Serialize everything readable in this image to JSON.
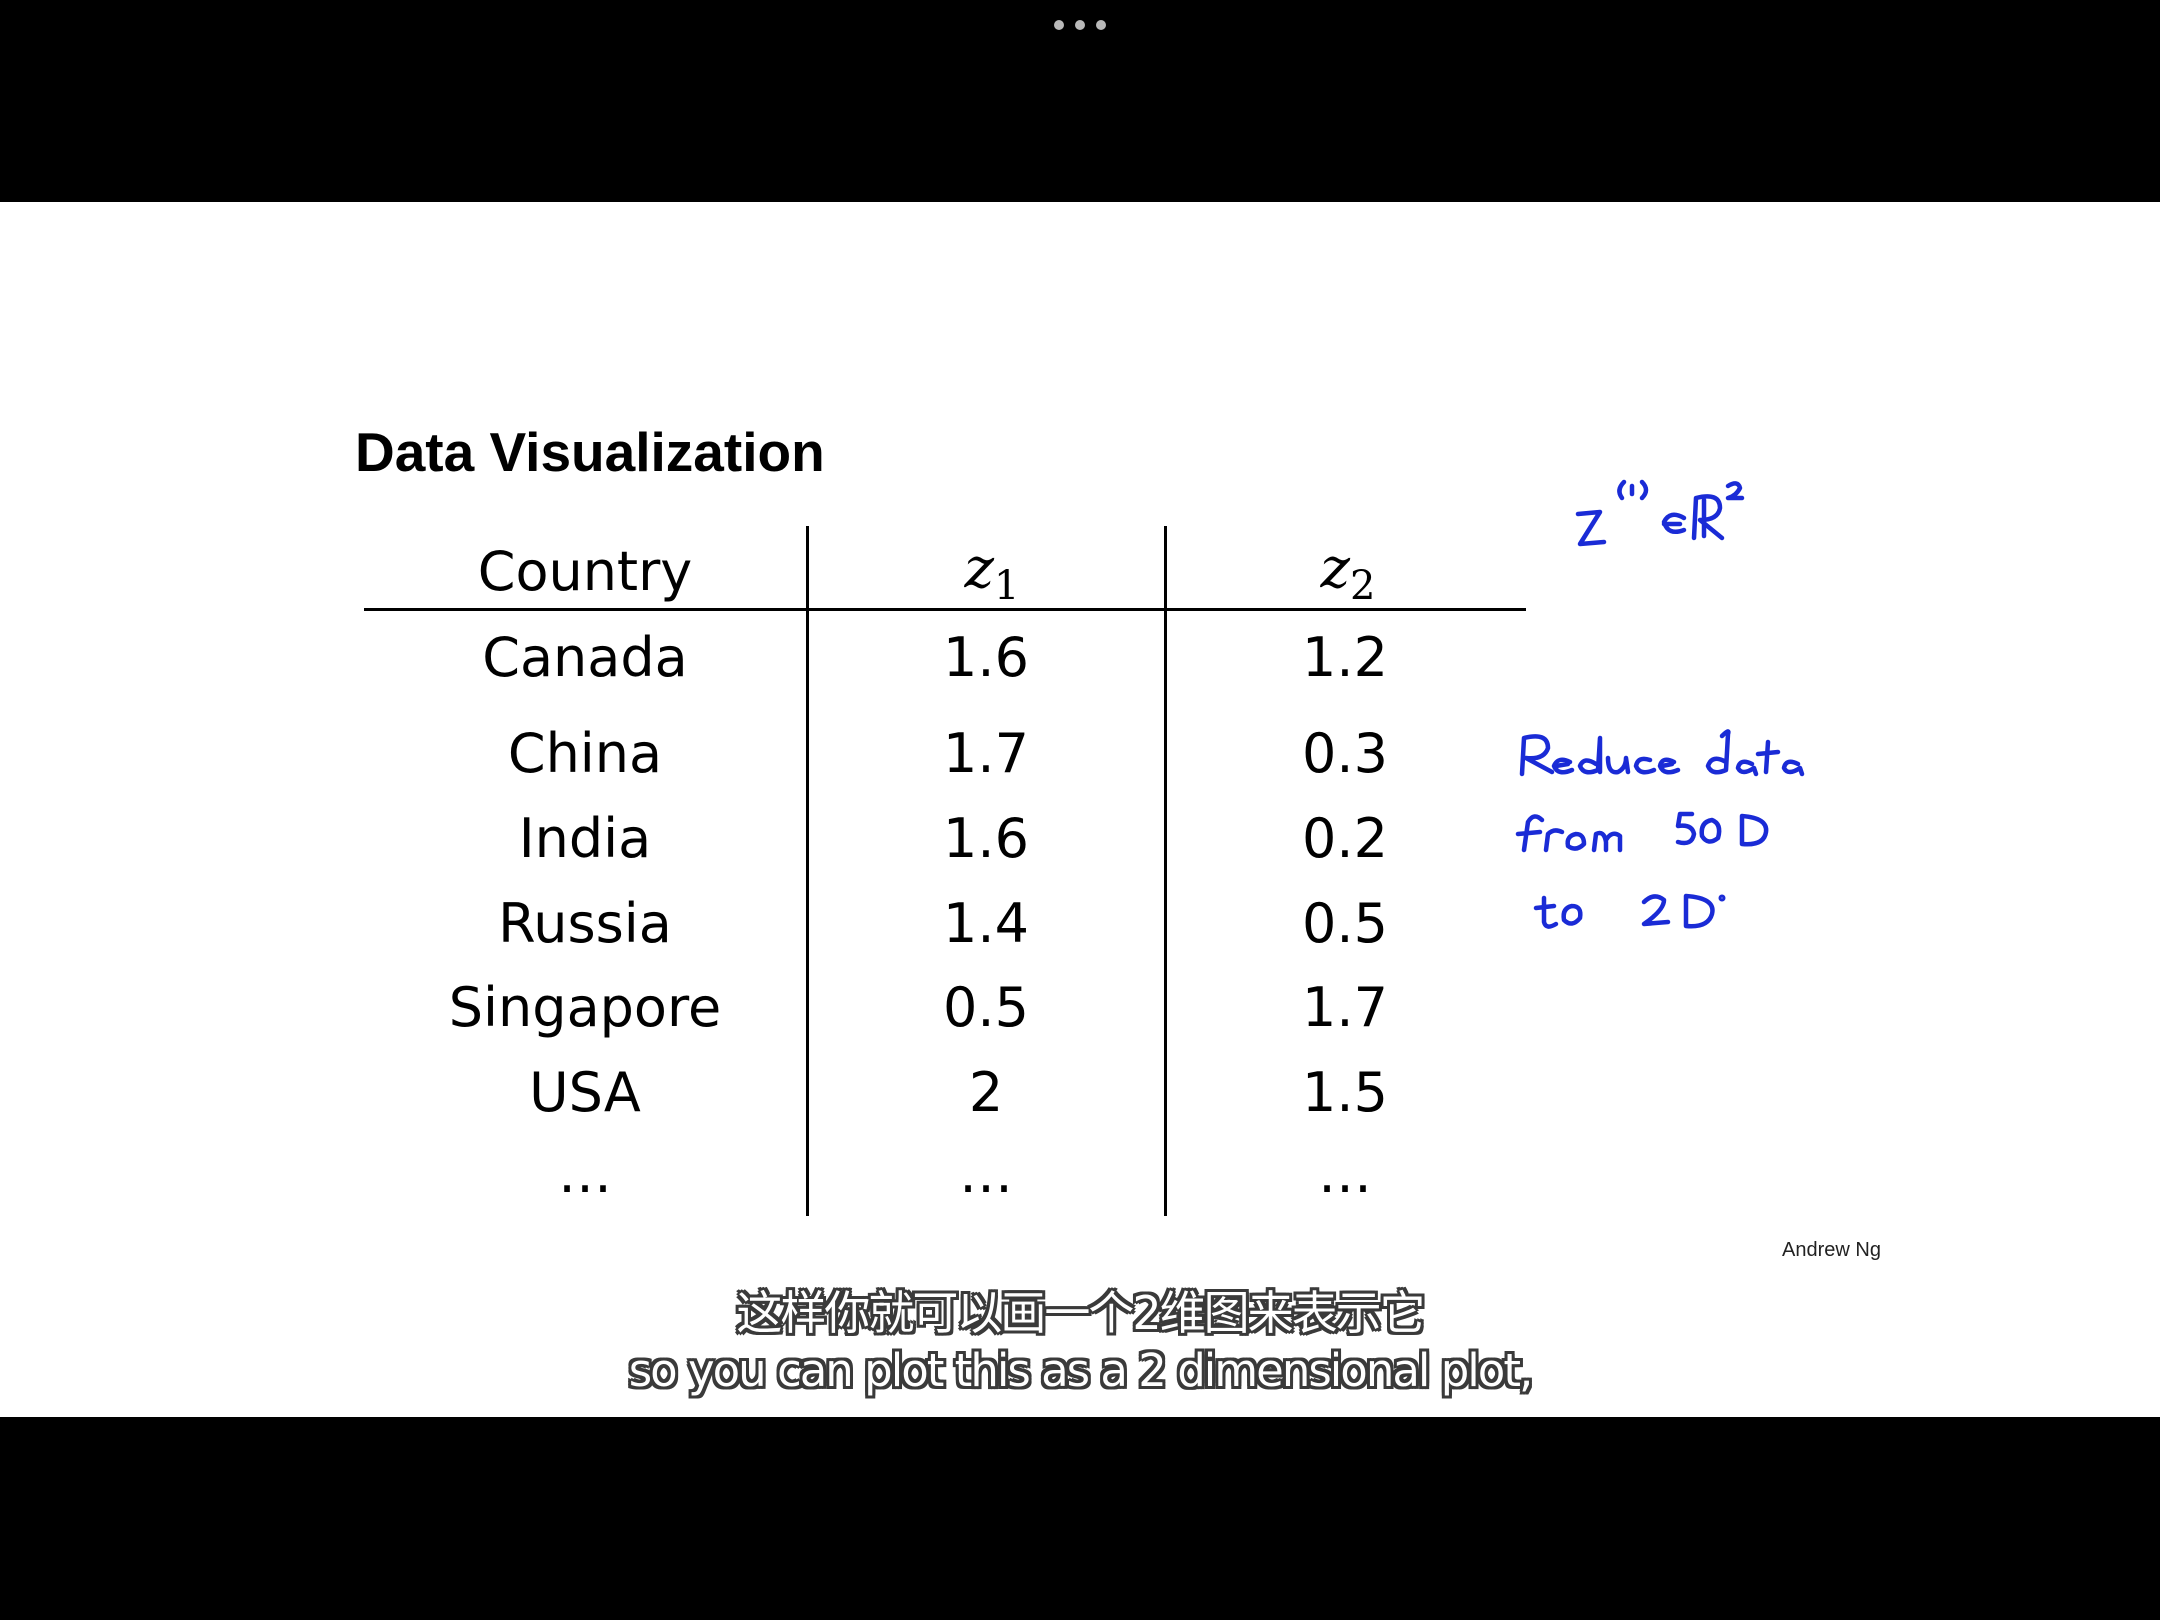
{
  "slide": {
    "title": "Data Visualization",
    "credit": "Andrew Ng"
  },
  "table": {
    "headers": {
      "country": "Country",
      "z1_base": "z",
      "z1_sub": "1",
      "z2_base": "z",
      "z2_sub": "2"
    },
    "rows": [
      {
        "country": "Canada",
        "z1": "1.6",
        "z2": "1.2"
      },
      {
        "country": "China",
        "z1": "1.7",
        "z2": "0.3"
      },
      {
        "country": "India",
        "z1": "1.6",
        "z2": "0.2"
      },
      {
        "country": "Russia",
        "z1": "1.4",
        "z2": "0.5"
      },
      {
        "country": "Singapore",
        "z1": "0.5",
        "z2": "1.7"
      },
      {
        "country": "USA",
        "z1": "2",
        "z2": "1.5"
      },
      {
        "country": "…",
        "z1": "…",
        "z2": "…"
      }
    ]
  },
  "annotations": {
    "color": "#1a2bd6",
    "formula": "z(i) ∈ ℝ²",
    "note_lines": [
      "Reduce data",
      "from 50D",
      "to 2D"
    ]
  },
  "subtitles": {
    "zh": "这样你就可以画一个2维图来表示它",
    "en": "so you can plot this as a 2 dimensional plot,"
  }
}
